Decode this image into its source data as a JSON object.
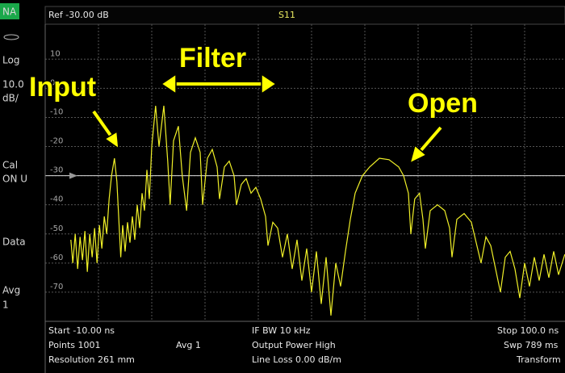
{
  "sidebar": {
    "mode": "NA",
    "items": [
      "Log",
      "10.0",
      "dB/",
      "Cal",
      "ON U",
      "Data",
      "Avg",
      "1"
    ]
  },
  "header": {
    "reference": "Ref -30.00 dB",
    "measurement": "S11"
  },
  "chart_data": {
    "type": "line",
    "xlim": [
      -10,
      100
    ],
    "ylim": [
      -80,
      22
    ],
    "xticks": [
      -10,
      1,
      12,
      23,
      34,
      45,
      56,
      67,
      78,
      89,
      100
    ],
    "yticks": [
      10,
      0,
      -10,
      -20,
      -30,
      -40,
      -50,
      -60,
      -70
    ],
    "grid": true,
    "reference_level": -30,
    "annotations": [
      "Input",
      "Filter",
      "Open"
    ],
    "series": [
      {
        "color": "#f0f028",
        "x": [
          -4.7,
          -4.3,
          -3.8,
          -3.3,
          -2.8,
          -2.3,
          -1.8,
          -1.3,
          -0.8,
          -0.3,
          0.2,
          0.7,
          1.2,
          1.7,
          2.2,
          2.7,
          3.2,
          3.7,
          4.3,
          4.8,
          5.2,
          5.6,
          6.0,
          6.5,
          7.0,
          7.5,
          8.0,
          8.5,
          9.0,
          9.5,
          10.0,
          10.5,
          11.0,
          11.5,
          12.0,
          12.8,
          13.5,
          14.5,
          15.3,
          15.8,
          16.5,
          17.5,
          18.3,
          19.2,
          20.0,
          21.0,
          22.0,
          22.5,
          23.5,
          24.5,
          25.5,
          26.0,
          27.0,
          28.0,
          29.0,
          29.5,
          30.5,
          31.5,
          32.5,
          33.5,
          34.5,
          35.5,
          36.0,
          37.0,
          38.0,
          39.0,
          40.0,
          41.0,
          42.0,
          43.0,
          44.0,
          45.0,
          46.0,
          47.0,
          48.0,
          49.0,
          50.0,
          51.0,
          52.0,
          53.0,
          54.0,
          55.5,
          57.0,
          59.0,
          61.0,
          63.0,
          64.0,
          65.0,
          65.5,
          66.3,
          67.3,
          68.0,
          68.5,
          69.5,
          71.0,
          72.5,
          73.5,
          74.0,
          75.0,
          76.5,
          78.0,
          79.0,
          80.0,
          81.0,
          82.0,
          83.0,
          84.0,
          85.0,
          86.0,
          87.0,
          88.0,
          89.0,
          90.0,
          91.0,
          92.0,
          93.0,
          94.0,
          95.0,
          96.0,
          97.3
        ],
        "values": [
          -52,
          -60,
          -50,
          -62,
          -51,
          -59,
          -49,
          -63,
          -50,
          -58,
          -48,
          -60,
          -47,
          -55,
          -44,
          -50,
          -38,
          -30,
          -24,
          -32,
          -45,
          -58,
          -47,
          -56,
          -46,
          -53,
          -44,
          -52,
          -40,
          -48,
          -36,
          -42,
          -28,
          -38,
          -20,
          -6,
          -20,
          -6,
          -25,
          -40,
          -18,
          -13,
          -30,
          -42,
          -22,
          -17,
          -22,
          -40,
          -24,
          -21,
          -27,
          -38,
          -27,
          -25,
          -30,
          -40,
          -33,
          -31,
          -36,
          -34,
          -38,
          -44,
          -54,
          -46,
          -48,
          -58,
          -50,
          -62,
          -52,
          -66,
          -55,
          -70,
          -56,
          -74,
          -58,
          -78,
          -60,
          -68,
          -56,
          -45,
          -36,
          -30,
          -27,
          -24,
          -24.5,
          -27,
          -30,
          -36,
          -50,
          -38,
          -36,
          -45,
          -55,
          -42,
          -40,
          -42,
          -48,
          -58,
          -45,
          -43,
          -46,
          -53,
          -60,
          -51,
          -54,
          -62,
          -70,
          -58,
          -56,
          -62,
          -72,
          -60,
          -68,
          -58,
          -66,
          -57,
          -65,
          -56,
          -64,
          -57
        ]
      }
    ]
  },
  "status": [
    [
      "Start -10.00 ns",
      "IF BW 10 kHz",
      "Stop 100.0 ns"
    ],
    [
      "Points 1001",
      "Avg  1",
      "Output Power High",
      "Swp 789 ms"
    ],
    [
      "Resolution 261 mm",
      "Line Loss 0.00  dB/m",
      "Transform"
    ]
  ]
}
